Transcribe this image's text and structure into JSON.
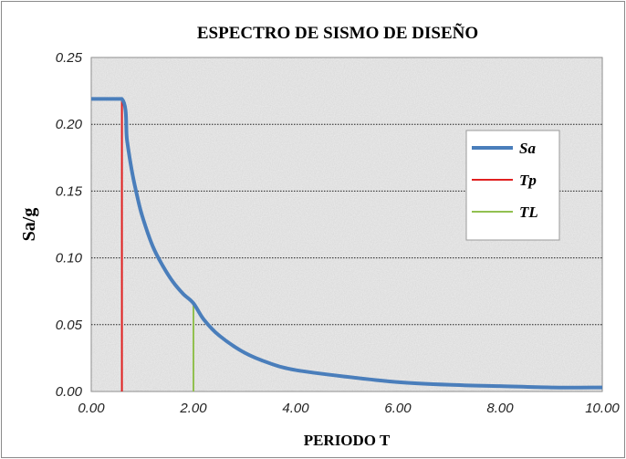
{
  "chart_data": {
    "type": "line",
    "title": "ESPECTRO DE SISMO DE DISEÑO",
    "xlabel": "PERIODO T",
    "ylabel": "Sa/g",
    "xlim": [
      0,
      10
    ],
    "ylim": [
      0,
      0.25
    ],
    "x_ticks": [
      "0.00",
      "2.00",
      "4.00",
      "6.00",
      "8.00",
      "10.00"
    ],
    "y_ticks": [
      "0.00",
      "0.05",
      "0.10",
      "0.15",
      "0.20",
      "0.25"
    ],
    "grid": "horizontal-dotted",
    "legend_position": "right",
    "series": [
      {
        "name": "Sa",
        "color": "#4a7ebb",
        "x": [
          0.0,
          0.6,
          0.7,
          0.8,
          0.9,
          1.0,
          1.2,
          1.4,
          1.6,
          1.8,
          2.0,
          2.2,
          2.5,
          3.0,
          3.5,
          4.0,
          5.0,
          6.0,
          7.0,
          8.0,
          9.0,
          10.0
        ],
        "y": [
          0.219,
          0.219,
          0.188,
          0.164,
          0.146,
          0.131,
          0.109,
          0.094,
          0.082,
          0.073,
          0.066,
          0.054,
          0.042,
          0.029,
          0.021,
          0.016,
          0.011,
          0.007,
          0.005,
          0.004,
          0.003,
          0.003
        ]
      },
      {
        "name": "Tp",
        "color": "#e02020",
        "x": [
          0.6,
          0.6
        ],
        "y": [
          0,
          0.219
        ]
      },
      {
        "name": "TL",
        "color": "#92c050",
        "x": [
          2.0,
          2.0
        ],
        "y": [
          0,
          0.066
        ]
      }
    ]
  }
}
